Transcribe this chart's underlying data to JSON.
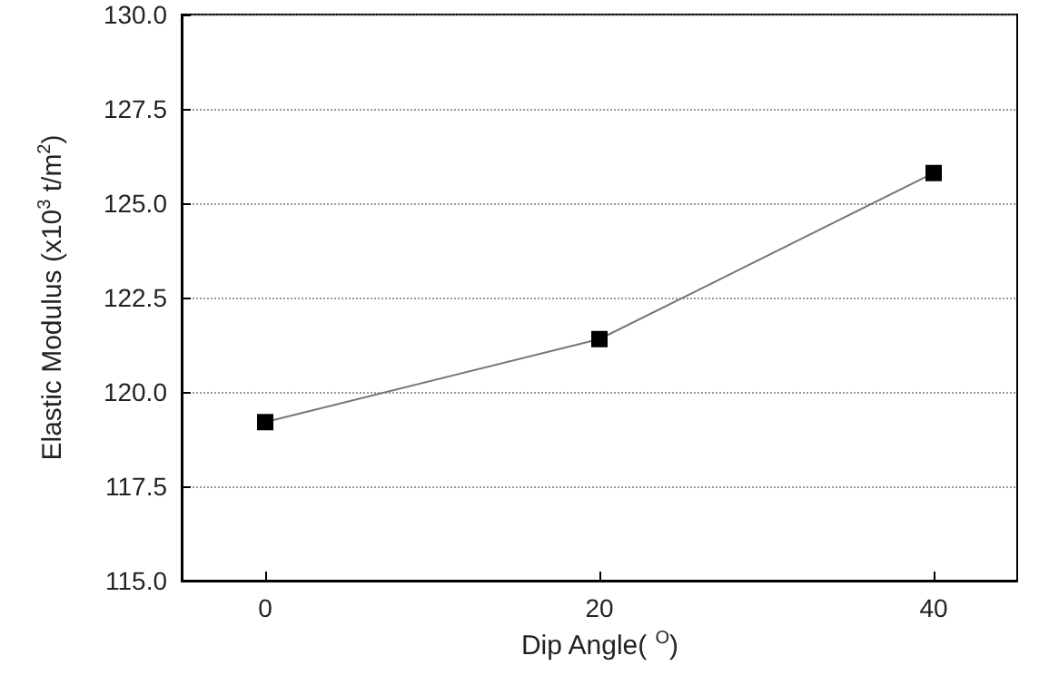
{
  "chart_data": {
    "type": "line",
    "xlabel": "Dip Angle( $^{O}$)",
    "ylabel": "Elastic Modulus (x10$^{3}$ t/m$^{2}$)",
    "x": [
      0,
      20,
      40
    ],
    "series": [
      {
        "color": "#000000",
        "values": [
          119.2,
          121.4,
          125.8
        ]
      }
    ],
    "xlim": [
      -5,
      45
    ],
    "xticks": [
      0,
      20,
      40
    ],
    "ylim": [
      115,
      130
    ],
    "yticks": [
      {
        "value": 115,
        "label": "115.0"
      },
      {
        "value": 117.5,
        "label": "117.5"
      },
      {
        "value": 120,
        "label": "120.0"
      },
      {
        "value": 122.5,
        "label": "122.5"
      },
      {
        "value": 125,
        "label": "125.0"
      },
      {
        "value": 127.5,
        "label": "127.5"
      },
      {
        "value": 130,
        "label": "130.0"
      }
    ],
    "grid": "y",
    "marker": "square",
    "line_style": "solid"
  }
}
